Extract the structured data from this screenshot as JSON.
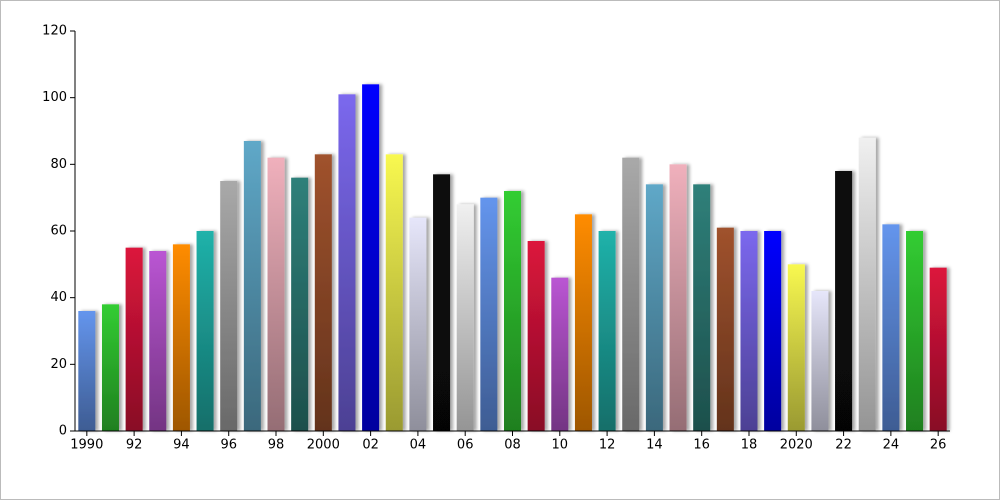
{
  "chart_data": {
    "type": "bar",
    "categories": [
      "1990",
      null,
      "92",
      null,
      "94",
      null,
      "96",
      null,
      "98",
      null,
      "2000",
      null,
      "02",
      null,
      "04",
      null,
      "06",
      null,
      "08",
      null,
      "10",
      null,
      "12",
      null,
      "14",
      null,
      "16",
      null,
      "18",
      null,
      "2020",
      null,
      "22",
      null,
      "24",
      null,
      "26"
    ],
    "values": [
      36,
      38,
      55,
      54,
      56,
      60,
      75,
      87,
      82,
      76,
      83,
      101,
      104,
      83,
      64,
      77,
      68,
      70,
      72,
      57,
      46,
      65,
      60,
      82,
      74,
      80,
      74,
      61,
      60,
      60,
      50,
      42,
      78,
      88,
      62,
      60,
      49
    ],
    "colors": [
      "#6495ed",
      "#32cd32",
      "#dc143c",
      "#ba55d3",
      "#ff8c00",
      "#20b2aa",
      "#a9a9a9",
      "#5fa8c8",
      "#f0b0bc",
      "#2f807a",
      "#a0522d",
      "#7b68ee",
      "#0000ff",
      "#f8f850",
      "#e6e6fa",
      "#0a0a0a",
      "#f0f0f0",
      "#6495ed",
      "#32cd32",
      "#dc143c",
      "#ba55d3",
      "#ff8c00",
      "#20b2aa",
      "#a9a9a9",
      "#5fa8c8",
      "#f0b0bc",
      "#2f807a",
      "#a0522d",
      "#7b68ee",
      "#0000ff",
      "#f8f850",
      "#e6e6fa",
      "#0a0a0a",
      "#f0f0f0",
      "#6495ed",
      "#32cd32",
      "#dc143c"
    ],
    "ylim": [
      0,
      120
    ],
    "yticks": [
      0,
      20,
      40,
      60,
      80,
      100,
      120
    ],
    "grid": false
  }
}
